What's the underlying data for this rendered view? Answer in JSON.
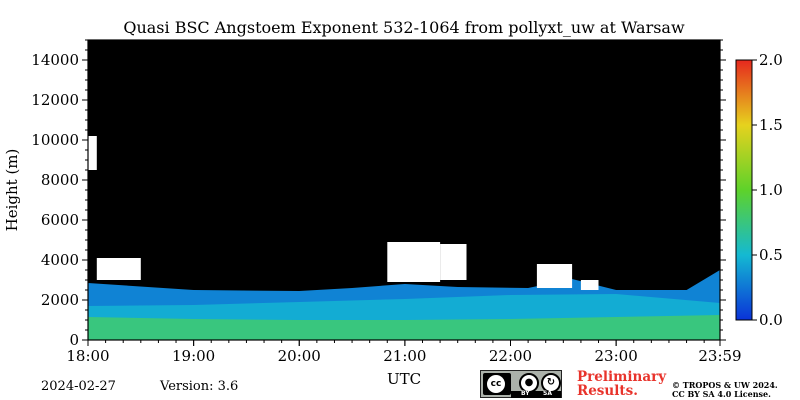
{
  "chart_data": {
    "type": "heatmap",
    "title": "Quasi BSC Angstoem Exponent 532-1064 from pollyxt_uw at Warsaw",
    "xlabel": "UTC",
    "ylabel": "Height (m)",
    "x_range": [
      "18:00",
      "23:59"
    ],
    "ylim": [
      0,
      15000
    ],
    "x_ticks": [
      "18:00",
      "19:00",
      "20:00",
      "21:00",
      "22:00",
      "23:00",
      "23:59"
    ],
    "y_ticks": [
      0,
      2000,
      4000,
      6000,
      8000,
      10000,
      12000,
      14000
    ],
    "colorbar": {
      "range": [
        0.0,
        2.0
      ],
      "ticks": [
        "0.0",
        "0.5",
        "1.0",
        "1.5",
        "2.0"
      ],
      "colors": [
        "#0a32d8",
        "#14b9d2",
        "#5ed22a",
        "#e6d21e",
        "#e6281e"
      ]
    },
    "background_color": "#000000",
    "layers": [
      {
        "name": "low",
        "value": 0.75,
        "top": [
          [
            0,
            1150
          ],
          [
            60,
            1050
          ],
          [
            120,
            1000
          ],
          [
            180,
            1000
          ],
          [
            240,
            1050
          ],
          [
            300,
            1150
          ],
          [
            359,
            1250
          ]
        ]
      },
      {
        "name": "middle",
        "value": 0.45,
        "top": [
          [
            0,
            1700
          ],
          [
            60,
            1750
          ],
          [
            120,
            1900
          ],
          [
            180,
            2050
          ],
          [
            240,
            2250
          ],
          [
            300,
            2300
          ],
          [
            359,
            1850
          ]
        ]
      },
      {
        "name": "upper",
        "value": 0.3,
        "top": [
          [
            0,
            2850
          ],
          [
            60,
            2500
          ],
          [
            120,
            2450
          ],
          [
            150,
            2600
          ],
          [
            180,
            2800
          ],
          [
            210,
            2650
          ],
          [
            250,
            2600
          ],
          [
            275,
            3050
          ],
          [
            300,
            2500
          ],
          [
            340,
            2500
          ],
          [
            359,
            3500
          ]
        ]
      }
    ],
    "cloud_gaps": [
      {
        "x": [
          0,
          5
        ],
        "y": [
          8500,
          10200
        ]
      },
      {
        "x": [
          5,
          30
        ],
        "y": [
          3000,
          4100
        ]
      },
      {
        "x": [
          170,
          200
        ],
        "y": [
          2900,
          4900
        ]
      },
      {
        "x": [
          200,
          215
        ],
        "y": [
          3000,
          4800
        ]
      },
      {
        "x": [
          255,
          275
        ],
        "y": [
          2600,
          3800
        ]
      },
      {
        "x": [
          280,
          290
        ],
        "y": [
          2500,
          3000
        ]
      }
    ],
    "footer": {
      "date": "2024-02-27",
      "version": "Version: 3.6",
      "preliminary_line1": "Preliminary",
      "preliminary_line2": "Results.",
      "license_line1": "© TROPOS & UW 2024.",
      "license_line2": "CC BY SA 4.0 License.",
      "cc_labels": [
        "cc",
        "BY",
        "SA"
      ]
    }
  }
}
